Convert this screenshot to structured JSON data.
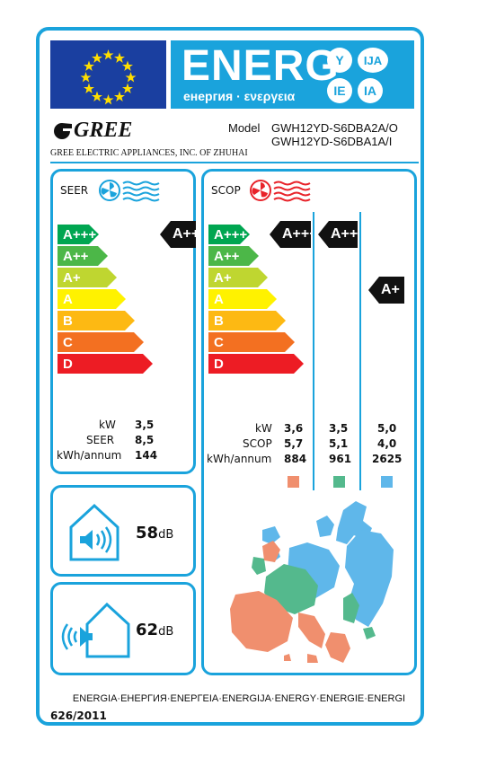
{
  "header": {
    "energ_title": "ENERG",
    "energ_sub": "енергия · ενεργεια",
    "lang_badges": [
      "Y",
      "IJA",
      "IE",
      "IA"
    ]
  },
  "brand": {
    "name": "GREE",
    "company": "GREE ELECTRIC APPLIANCES, INC. OF ZHUHAI"
  },
  "model": {
    "label": "Model",
    "line1": "GWH12YD-S6DBA2A/O",
    "line2": "GWH12YD-S6DBA1A/I"
  },
  "seer": {
    "title": "SEER",
    "scale": [
      "A+++",
      "A++",
      "A+",
      "A",
      "B",
      "C",
      "D"
    ],
    "rating": "A+++",
    "labels": {
      "kw": "kW",
      "seer": "SEER",
      "annum": "kWh/annum"
    },
    "values": {
      "kw": "3,5",
      "seer": "8,5",
      "annum": "144"
    }
  },
  "scop": {
    "title": "SCOP",
    "scale": [
      "A+++",
      "A++",
      "A+",
      "A",
      "B",
      "C",
      "D"
    ],
    "ratings": [
      "A+++",
      "A+++",
      "A+"
    ],
    "labels": {
      "kw": "kW",
      "scop": "SCOP",
      "annum": "kWh/annum"
    },
    "columns": [
      {
        "kw": "3,6",
        "scop": "5,7",
        "annum": "884",
        "color": "#f08f6e"
      },
      {
        "kw": "3,5",
        "scop": "5,1",
        "annum": "961",
        "color": "#54b98d"
      },
      {
        "kw": "5,0",
        "scop": "4,0",
        "annum": "2625",
        "color": "#5fb7ea"
      }
    ]
  },
  "noise": {
    "indoor": {
      "value": "58",
      "unit": "dB"
    },
    "outdoor": {
      "value": "62",
      "unit": "dB"
    }
  },
  "footer": {
    "languages": "ENERGIA·ЕНЕРГИЯ·ΕΝΕΡΓΕΙΑ·ENERGIJA·ENERGY·ENERGIE·ENERGI",
    "regulation": "626/2011"
  },
  "colors": {
    "frame": "#1aa3dc",
    "eu_blue": "#1a3fa0",
    "gree_red": "#e8232a",
    "scale": [
      "#00a651",
      "#4cb748",
      "#bfd630",
      "#fff200",
      "#fdb913",
      "#f37021",
      "#ed1c24"
    ]
  }
}
